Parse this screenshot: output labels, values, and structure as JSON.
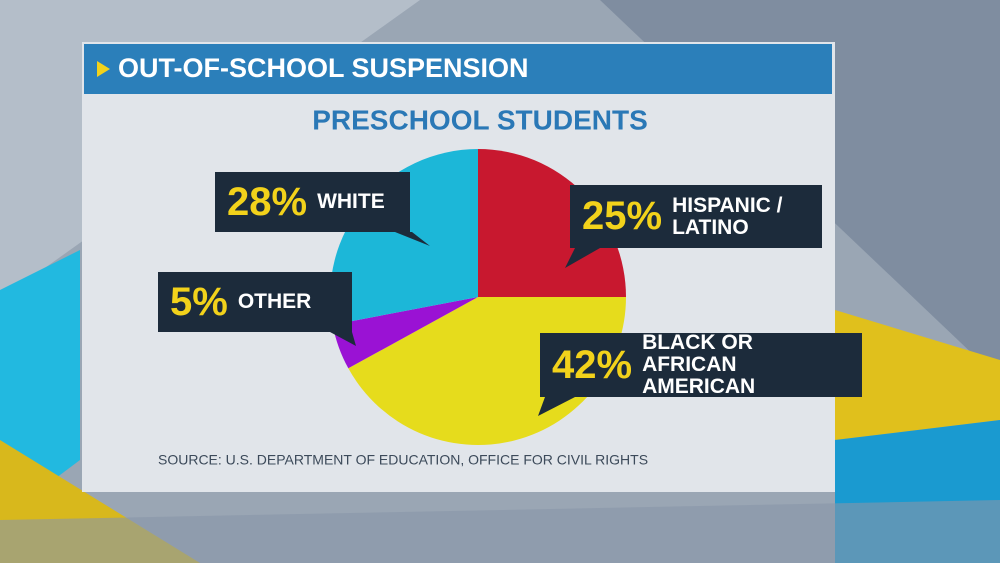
{
  "chart_data": {
    "type": "pie",
    "title": "OUT-OF-SCHOOL SUSPENSION",
    "subtitle": "PRESCHOOL STUDENTS",
    "categories": [
      "HISPANIC / LATINO",
      "BLACK OR AFRICAN AMERICAN",
      "OTHER",
      "WHITE"
    ],
    "values": [
      25,
      42,
      5,
      28
    ],
    "value_labels": [
      "25%",
      "42%",
      "5%",
      "28%"
    ],
    "colors": [
      "#c8182f",
      "#e6dc1c",
      "#9a12d4",
      "#1cb7d8"
    ],
    "source": "SOURCE: U.S. DEPARTMENT OF EDUCATION, OFFICE FOR CIVIL RIGHTS"
  }
}
